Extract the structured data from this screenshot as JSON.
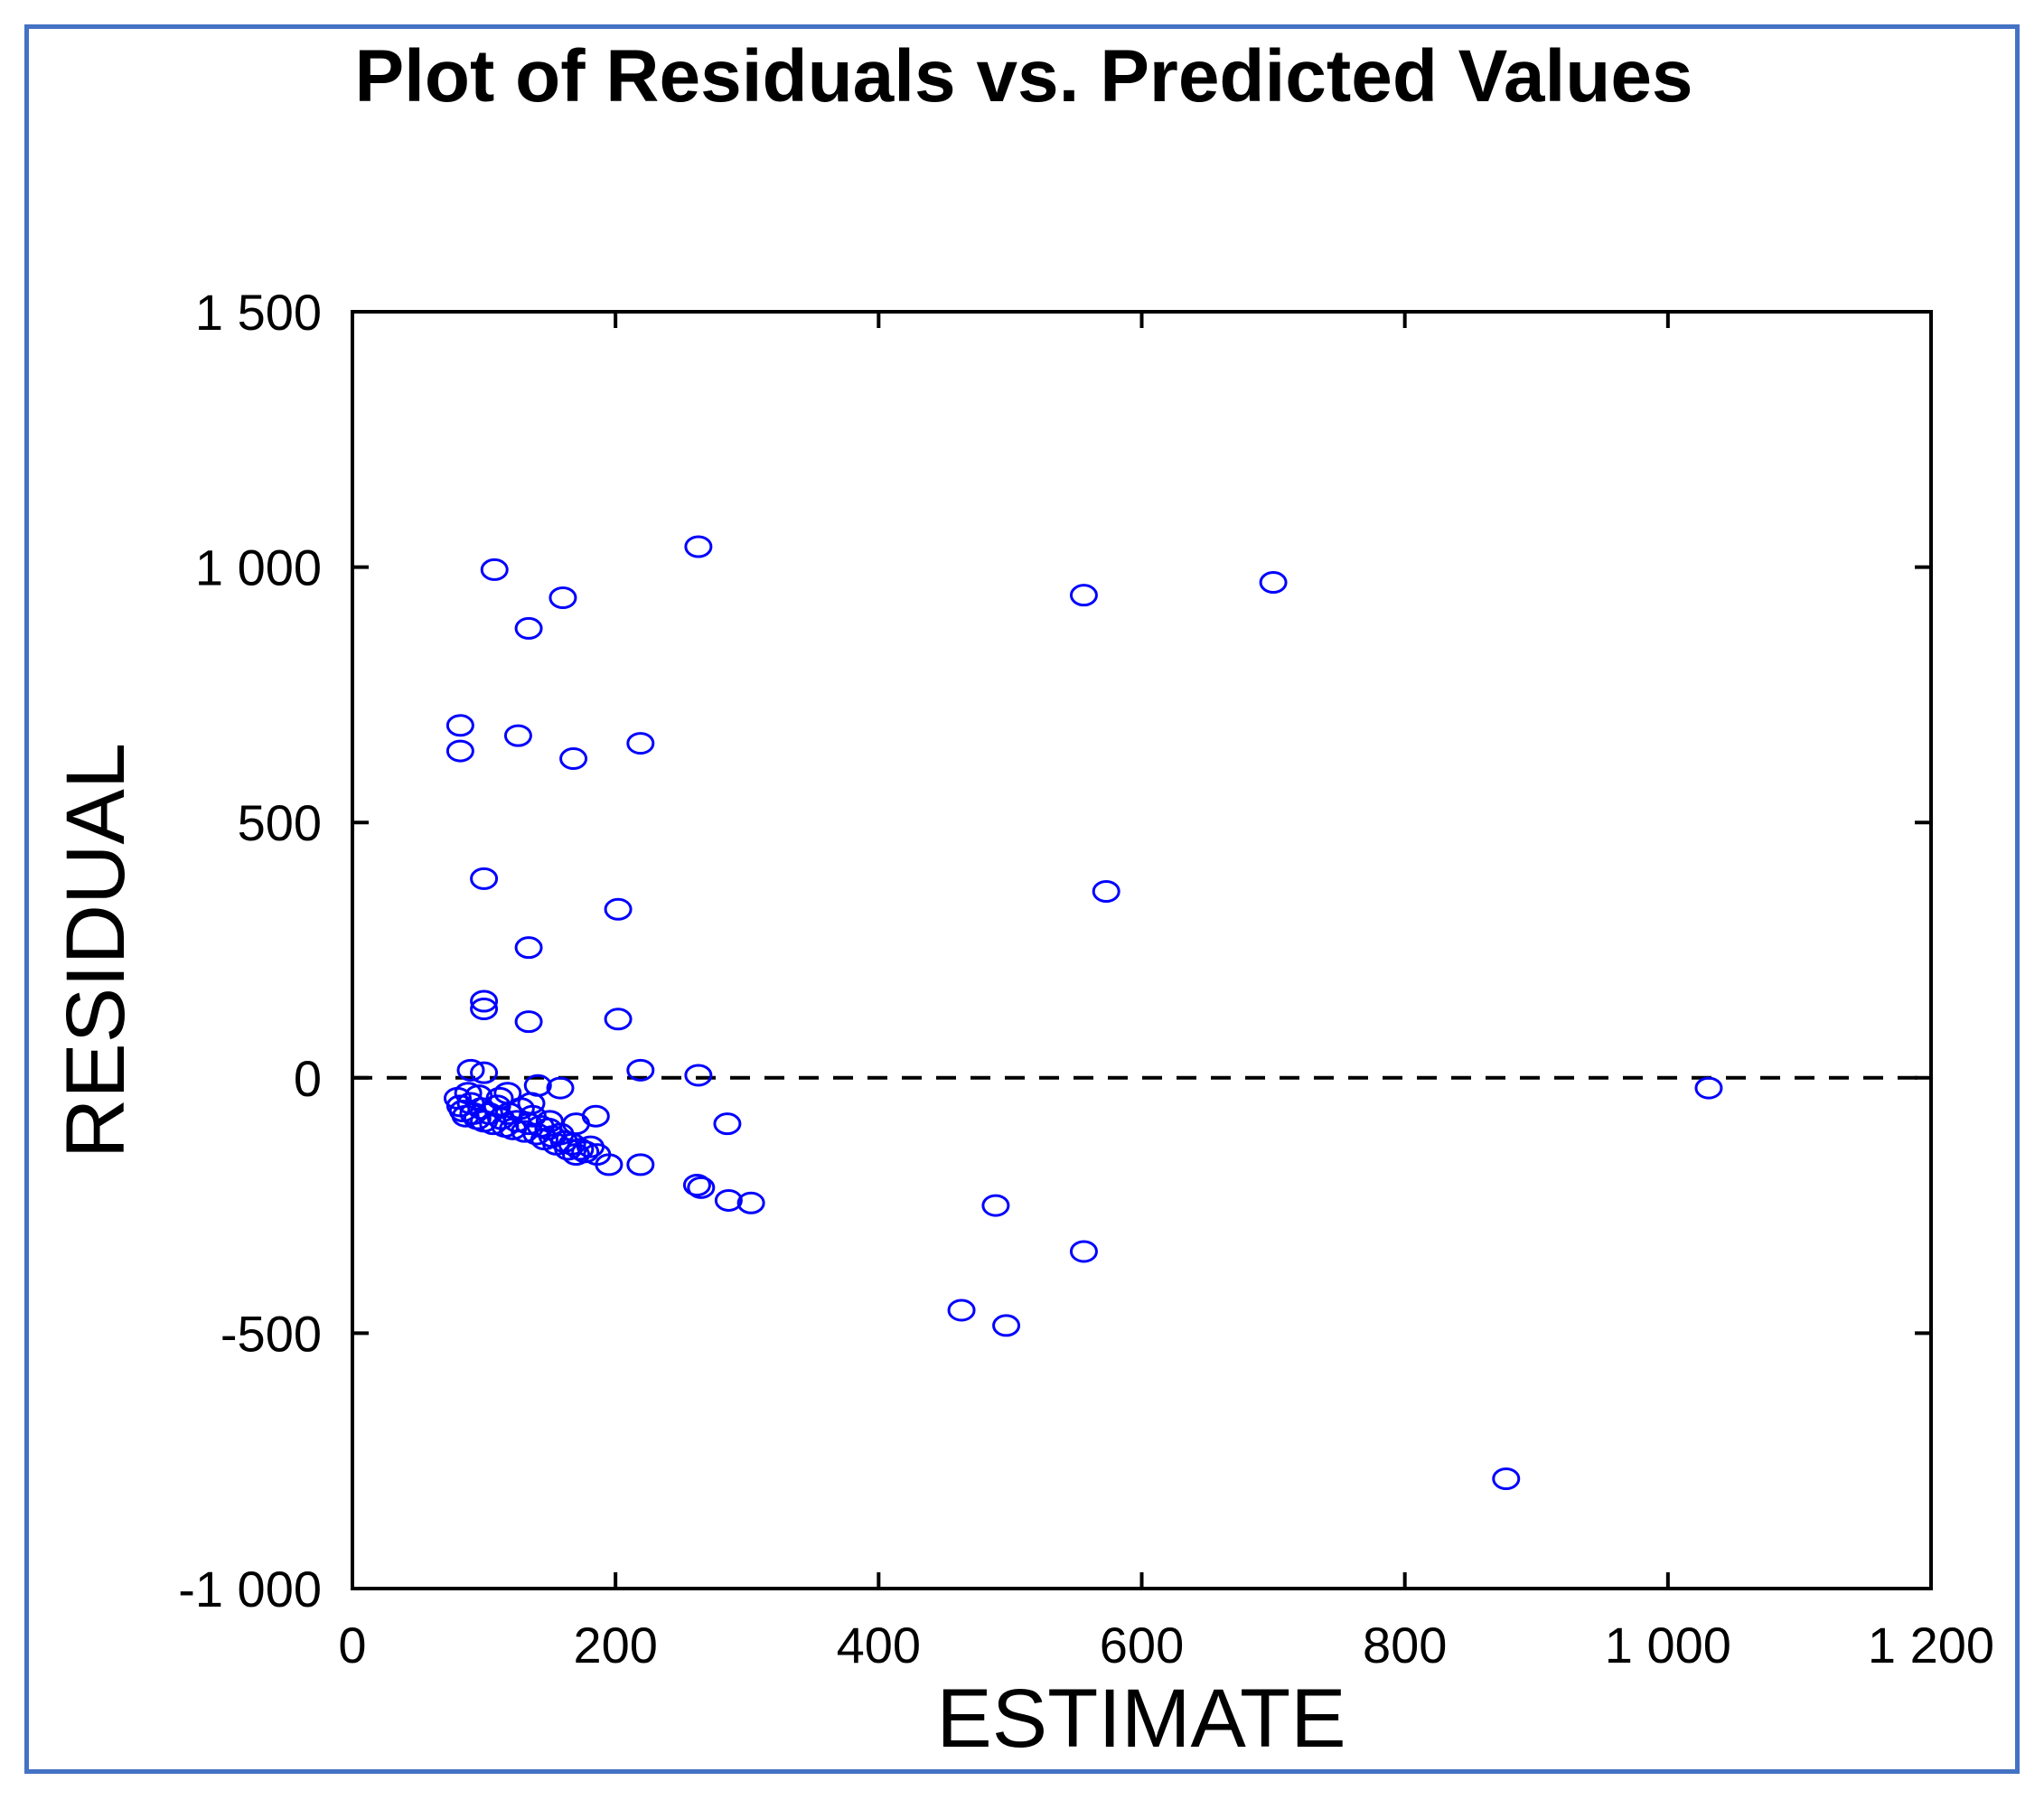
{
  "chart_data": {
    "type": "scatter",
    "title": "Plot of Residuals vs. Predicted Values",
    "xlabel": "ESTIMATE",
    "ylabel": "RESIDUAL",
    "xlim": [
      0,
      1200
    ],
    "ylim": [
      -1000,
      1500
    ],
    "xticks": [
      0,
      200,
      400,
      600,
      800,
      1000,
      1200
    ],
    "yticks": [
      -1000,
      -500,
      0,
      500,
      1000,
      1500
    ],
    "xtick_labels": [
      "0",
      "200",
      "400",
      "600",
      "800",
      "1 000",
      "1 200"
    ],
    "ytick_labels": [
      "-1 000",
      "-500",
      "0",
      "500",
      "1 000",
      "1 500"
    ],
    "reference_line": {
      "y": 0,
      "style": "dashed"
    },
    "marker": "open-circle",
    "color": "#0000ff",
    "series": [
      {
        "name": "residuals",
        "points": [
          [
            263,
            1040
          ],
          [
            108,
            995
          ],
          [
            160,
            940
          ],
          [
            134,
            880
          ],
          [
            556,
            945
          ],
          [
            700,
            970
          ],
          [
            82,
            690
          ],
          [
            82,
            640
          ],
          [
            126,
            670
          ],
          [
            168,
            625
          ],
          [
            219,
            655
          ],
          [
            100,
            390
          ],
          [
            202,
            330
          ],
          [
            134,
            255
          ],
          [
            573,
            365
          ],
          [
            100,
            150
          ],
          [
            100,
            135
          ],
          [
            134,
            110
          ],
          [
            202,
            115
          ],
          [
            90,
            15
          ],
          [
            100,
            10
          ],
          [
            219,
            15
          ],
          [
            263,
            5
          ],
          [
            141,
            -15
          ],
          [
            158,
            -20
          ],
          [
            1031,
            -20
          ],
          [
            285,
            -90
          ],
          [
            185,
            -75
          ],
          [
            170,
            -90
          ],
          [
            80,
            -40
          ],
          [
            82,
            -55
          ],
          [
            84,
            -65
          ],
          [
            86,
            -75
          ],
          [
            90,
            -50
          ],
          [
            92,
            -70
          ],
          [
            95,
            -80
          ],
          [
            98,
            -60
          ],
          [
            100,
            -85
          ],
          [
            104,
            -70
          ],
          [
            107,
            -90
          ],
          [
            110,
            -55
          ],
          [
            113,
            -80
          ],
          [
            116,
            -95
          ],
          [
            119,
            -70
          ],
          [
            122,
            -100
          ],
          [
            125,
            -85
          ],
          [
            128,
            -60
          ],
          [
            131,
            -105
          ],
          [
            134,
            -90
          ],
          [
            137,
            -75
          ],
          [
            140,
            -110
          ],
          [
            143,
            -95
          ],
          [
            146,
            -120
          ],
          [
            149,
            -100
          ],
          [
            152,
            -115
          ],
          [
            155,
            -130
          ],
          [
            158,
            -110
          ],
          [
            161,
            -125
          ],
          [
            164,
            -140
          ],
          [
            167,
            -130
          ],
          [
            170,
            -150
          ],
          [
            173,
            -140
          ],
          [
            177,
            -145
          ],
          [
            181,
            -135
          ],
          [
            186,
            -150
          ],
          [
            88,
            -30
          ],
          [
            96,
            -35
          ],
          [
            112,
            -40
          ],
          [
            118,
            -30
          ],
          [
            136,
            -50
          ],
          [
            150,
            -85
          ],
          [
            195,
            -170
          ],
          [
            219,
            -170
          ],
          [
            262,
            -210
          ],
          [
            265,
            -215
          ],
          [
            286,
            -240
          ],
          [
            303,
            -245
          ],
          [
            489,
            -250
          ],
          [
            556,
            -340
          ],
          [
            463,
            -455
          ],
          [
            497,
            -485
          ],
          [
            877,
            -785
          ]
        ]
      }
    ]
  }
}
